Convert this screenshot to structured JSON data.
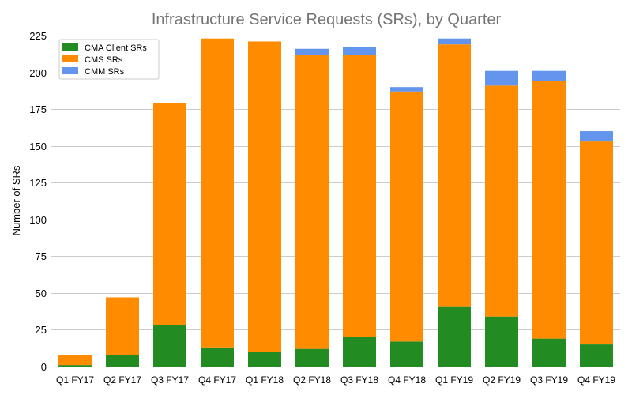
{
  "chart_data": {
    "type": "bar",
    "stacked": true,
    "title": "Infrastructure Service Requests (SRs), by Quarter",
    "xlabel": "",
    "ylabel": "Number of SRs",
    "ylim": [
      0,
      225
    ],
    "yticks": [
      0,
      25,
      50,
      75,
      100,
      125,
      150,
      175,
      200,
      225
    ],
    "grid": "horizontal",
    "legend_position": "top-left",
    "categories": [
      "Q1 FY17",
      "Q2 FY17",
      "Q3 FY17",
      "Q4 FY17",
      "Q1 FY18",
      "Q2 FY18",
      "Q3 FY18",
      "Q4 FY18",
      "Q1 FY19",
      "Q2 FY19",
      "Q3 FY19",
      "Q4 FY19"
    ],
    "series": [
      {
        "name": "CMA Client SRs",
        "color": "#228b22",
        "values": [
          1,
          8,
          28,
          13,
          10,
          12,
          20,
          17,
          41,
          34,
          19,
          15
        ]
      },
      {
        "name": "CMS SRs",
        "color": "#ff8c00",
        "values": [
          7,
          39,
          151,
          210,
          211,
          200,
          192,
          170,
          178,
          157,
          175,
          138
        ]
      },
      {
        "name": "CMM SRs",
        "color": "#6495ed",
        "values": [
          0,
          0,
          0,
          0,
          0,
          4,
          5,
          3,
          4,
          10,
          7,
          7
        ]
      }
    ]
  }
}
